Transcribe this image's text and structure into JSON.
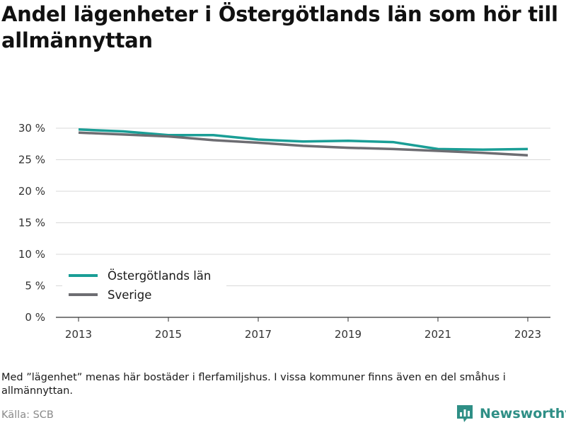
{
  "title": "Andel lägenheter i Östergötlands län som hör till allmännyttan",
  "footnote": "Med ”lägenhet” menas här bostäder i flerfamiljshus. I vissa kommuner finns även en del småhus i allmännyttan.",
  "source": "Källa: SCB",
  "brand": {
    "name": "Newsworthy",
    "icon": "newsworthy-logo-icon",
    "color": "#2f8f86"
  },
  "chart_data": {
    "type": "line",
    "x": [
      2013,
      2014,
      2015,
      2016,
      2017,
      2018,
      2019,
      2020,
      2021,
      2022,
      2023
    ],
    "series": [
      {
        "name": "Östergötlands län",
        "color": "#1a9e96",
        "values": [
          29.8,
          29.5,
          28.9,
          28.9,
          28.2,
          27.9,
          28.0,
          27.8,
          26.7,
          26.6,
          26.7
        ]
      },
      {
        "name": "Sverige",
        "color": "#6d6d72",
        "values": [
          29.3,
          29.0,
          28.7,
          28.1,
          27.7,
          27.2,
          26.9,
          26.7,
          26.4,
          26.1,
          25.7
        ]
      }
    ],
    "ylim": [
      0,
      30
    ],
    "yticks": [
      0,
      5,
      10,
      15,
      20,
      25,
      30
    ],
    "yticklabels": [
      "0 %",
      "5 %",
      "10 %",
      "15 %",
      "20 %",
      "25 %",
      "30 %"
    ],
    "xticks": [
      2013,
      2015,
      2017,
      2019,
      2021,
      2023
    ],
    "xticklabels": [
      "2013",
      "2015",
      "2017",
      "2019",
      "2021",
      "2023"
    ],
    "grid": true,
    "legend_position": "bottom-left",
    "xlabel": "",
    "ylabel": ""
  }
}
